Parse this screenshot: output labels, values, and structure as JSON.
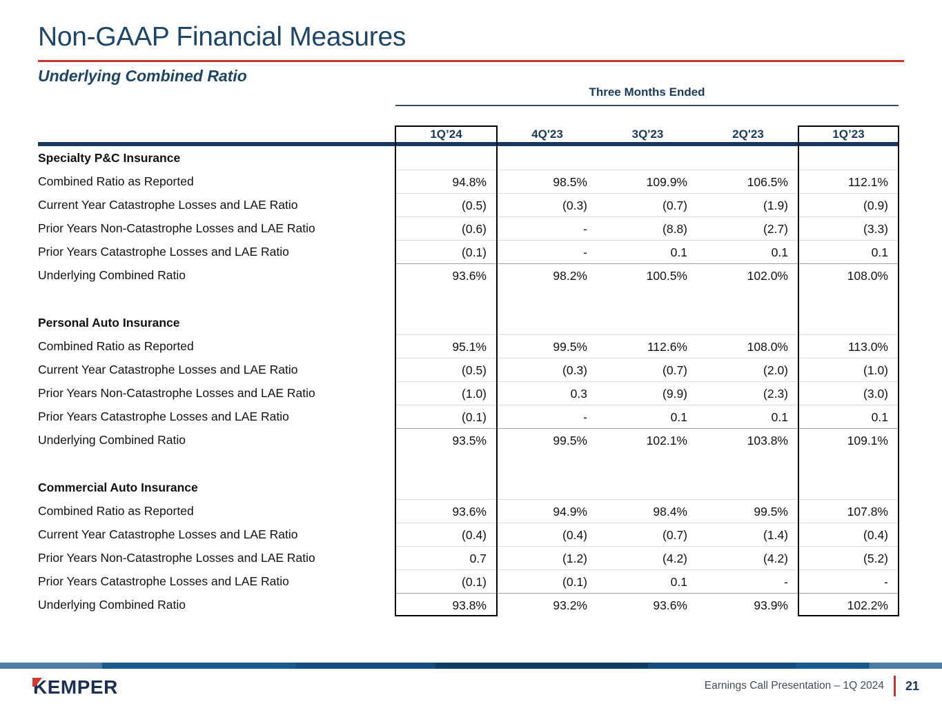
{
  "slide": {
    "title": "Non-GAAP Financial Measures",
    "subtitle": "Underlying Combined Ratio"
  },
  "table": {
    "period_header": "Three Months Ended",
    "columns": [
      "1Q’24",
      "4Q'23",
      "3Q'23",
      "2Q'23",
      "1Q’23"
    ],
    "boxed_columns": [
      "1Q’24",
      "1Q’23"
    ],
    "sections": [
      {
        "name": "Specialty P&C Insurance",
        "rows": [
          {
            "label": "Combined Ratio as Reported",
            "type": "data",
            "values": [
              "94.8%",
              "98.5%",
              "109.9%",
              "106.5%",
              "112.1%"
            ]
          },
          {
            "label": "Current Year Catastrophe Losses and LAE Ratio",
            "type": "data",
            "values": [
              "(0.5)",
              "(0.3)",
              "(0.7)",
              "(1.9)",
              "(0.9)"
            ]
          },
          {
            "label": "Prior Years Non-Catastrophe Losses and LAE Ratio",
            "type": "data",
            "values": [
              "(0.6)",
              "-",
              "(8.8)",
              "(2.7)",
              "(3.3)"
            ]
          },
          {
            "label": "Prior Years Catastrophe Losses and LAE Ratio",
            "type": "data",
            "values": [
              "(0.1)",
              "-",
              "0.1",
              "0.1",
              "0.1"
            ]
          },
          {
            "label": "Underlying Combined Ratio",
            "type": "total",
            "values": [
              "93.6%",
              "98.2%",
              "100.5%",
              "102.0%",
              "108.0%"
            ]
          }
        ]
      },
      {
        "name": "Personal Auto Insurance",
        "rows": [
          {
            "label": "Combined Ratio as Reported",
            "type": "data",
            "values": [
              "95.1%",
              "99.5%",
              "112.6%",
              "108.0%",
              "113.0%"
            ]
          },
          {
            "label": "Current Year Catastrophe Losses and LAE Ratio",
            "type": "data",
            "values": [
              "(0.5)",
              "(0.3)",
              "(0.7)",
              "(2.0)",
              "(1.0)"
            ]
          },
          {
            "label": "Prior Years Non-Catastrophe Losses and LAE Ratio",
            "type": "data",
            "values": [
              "(1.0)",
              "0.3",
              "(9.9)",
              "(2.3)",
              "(3.0)"
            ]
          },
          {
            "label": "Prior Years Catastrophe Losses and LAE Ratio",
            "type": "data",
            "values": [
              "(0.1)",
              "-",
              "0.1",
              "0.1",
              "0.1"
            ]
          },
          {
            "label": "Underlying Combined Ratio",
            "type": "total",
            "values": [
              "93.5%",
              "99.5%",
              "102.1%",
              "103.8%",
              "109.1%"
            ]
          }
        ]
      },
      {
        "name": "Commercial Auto Insurance",
        "rows": [
          {
            "label": "Combined Ratio as Reported",
            "type": "data",
            "values": [
              "93.6%",
              "94.9%",
              "98.4%",
              "99.5%",
              "107.8%"
            ]
          },
          {
            "label": "Current Year Catastrophe Losses and LAE Ratio",
            "type": "data",
            "values": [
              "(0.4)",
              "(0.4)",
              "(0.7)",
              "(1.4)",
              "(0.4)"
            ]
          },
          {
            "label": "Prior Years Non-Catastrophe Losses and LAE Ratio",
            "type": "data",
            "values": [
              "0.7",
              "(1.2)",
              "(4.2)",
              "(4.2)",
              "(5.2)"
            ]
          },
          {
            "label": "Prior Years Catastrophe Losses and LAE Ratio",
            "type": "data",
            "values": [
              "(0.1)",
              "(0.1)",
              "0.1",
              "-",
              "-"
            ]
          },
          {
            "label": "Underlying Combined Ratio",
            "type": "total",
            "values": [
              "93.8%",
              "93.2%",
              "93.6%",
              "93.9%",
              "102.2%"
            ]
          }
        ]
      }
    ]
  },
  "footer": {
    "logo_text": "KEMPER",
    "caption": "Earnings Call Presentation – 1Q 2024",
    "page_number": "21"
  },
  "colors": {
    "navy_title": "#1d4568",
    "navy_rule": "#17375e",
    "accent_red": "#c9342a",
    "logo_navy": "#1b2f54",
    "logo_red": "#d6382e",
    "row_separator": "#dcdcdc",
    "total_separator": "#9aa0a6"
  }
}
